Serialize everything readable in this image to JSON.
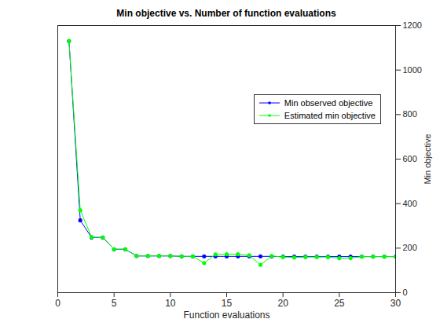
{
  "chart_data": {
    "type": "line",
    "title": "Min objective vs. Number of function evaluations",
    "x_label": "Function evaluations",
    "y_label": "Min objective",
    "x": [
      1,
      2,
      3,
      4,
      5,
      6,
      7,
      8,
      9,
      10,
      11,
      12,
      13,
      14,
      15,
      16,
      17,
      18,
      19,
      20,
      21,
      22,
      23,
      24,
      25,
      26,
      27,
      28,
      29,
      30
    ],
    "series": [
      {
        "name": "Min observed objective",
        "color": "#0000ff",
        "marker": "dot",
        "line_style": "solid",
        "values": [
          1130,
          325,
          248,
          248,
          195,
          195,
          165,
          165,
          165,
          165,
          163,
          163,
          163,
          163,
          163,
          163,
          163,
          163,
          163,
          162,
          162,
          162,
          162,
          162,
          162,
          162,
          162,
          162,
          162,
          162
        ]
      },
      {
        "name": "Estimated min objective",
        "color": "#00ff00",
        "marker": "dot",
        "line_style": "solid",
        "values": [
          1130,
          370,
          250,
          248,
          195,
          195,
          165,
          165,
          165,
          165,
          163,
          163,
          133,
          172,
          173,
          173,
          168,
          125,
          165,
          160,
          158,
          160,
          160,
          160,
          155,
          155,
          162,
          162,
          162,
          162
        ]
      }
    ],
    "xlim": [
      0,
      30
    ],
    "ylim": [
      0,
      1200
    ],
    "xticks": [
      0,
      5,
      10,
      15,
      20,
      25,
      30
    ],
    "yticks": [
      0,
      200,
      400,
      600,
      800,
      1000,
      1200
    ],
    "grid": false,
    "legend": "northeast"
  }
}
